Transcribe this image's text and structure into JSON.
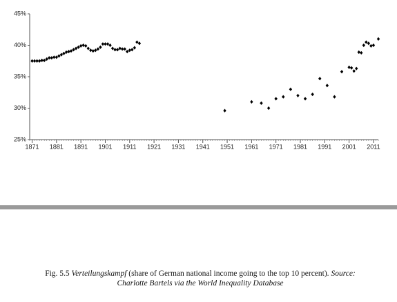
{
  "chart_data": {
    "type": "scatter",
    "x": [
      1871,
      1872,
      1873,
      1874,
      1875,
      1876,
      1877,
      1878,
      1879,
      1880,
      1881,
      1882,
      1883,
      1884,
      1885,
      1886,
      1887,
      1888,
      1889,
      1890,
      1891,
      1892,
      1893,
      1894,
      1895,
      1896,
      1897,
      1898,
      1899,
      1900,
      1901,
      1902,
      1903,
      1904,
      1905,
      1906,
      1907,
      1908,
      1909,
      1910,
      1911,
      1912,
      1913,
      1914,
      1915,
      1950,
      1961,
      1965,
      1968,
      1971,
      1974,
      1977,
      1980,
      1983,
      1986,
      1989,
      1992,
      1995,
      1998,
      2001,
      2002,
      2003,
      2004,
      2005,
      2006,
      2007,
      2008,
      2009,
      2010,
      2011,
      2013
    ],
    "values": [
      37.5,
      37.5,
      37.5,
      37.5,
      37.6,
      37.6,
      37.8,
      38.0,
      38.0,
      38.1,
      38.1,
      38.3,
      38.5,
      38.7,
      38.9,
      39.0,
      39.1,
      39.3,
      39.5,
      39.7,
      39.9,
      40.0,
      39.9,
      39.5,
      39.2,
      39.1,
      39.2,
      39.4,
      39.7,
      40.2,
      40.2,
      40.2,
      40.0,
      39.5,
      39.3,
      39.3,
      39.5,
      39.4,
      39.4,
      39.0,
      39.2,
      39.3,
      39.6,
      40.5,
      40.3,
      29.6,
      31.0,
      30.8,
      30.0,
      31.5,
      31.8,
      33.0,
      32.0,
      31.5,
      32.2,
      34.7,
      33.6,
      31.8,
      35.8,
      36.5,
      36.4,
      35.9,
      36.3,
      38.9,
      38.8,
      40.0,
      40.5,
      40.3,
      39.9,
      40.0,
      41.0
    ],
    "color": "#000000",
    "xlim": [
      1870,
      2013
    ],
    "xticks": [
      1871,
      1881,
      1891,
      1901,
      1911,
      1921,
      1931,
      1941,
      1951,
      1961,
      1971,
      1981,
      1991,
      2001,
      2011
    ],
    "x_minor_tick_step": 1,
    "ylim": [
      25,
      45
    ],
    "yticks": [
      {
        "value": 45,
        "label": "45%"
      },
      {
        "value": 40,
        "label": "40%"
      },
      {
        "value": 35,
        "label": "35%"
      },
      {
        "value": 30,
        "label": "30%"
      },
      {
        "value": 25,
        "label": "25%"
      }
    ]
  },
  "caption": {
    "label": "Fig. 5.5",
    "term": "Verteilungskampf",
    "text": "(share of German national income going to the top 10 percent).",
    "source_label": "Source:",
    "source": "Charlotte Bartels via the World Inequality Database"
  }
}
